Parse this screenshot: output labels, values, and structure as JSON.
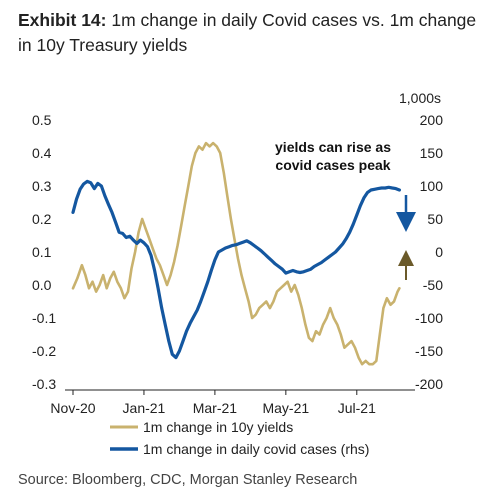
{
  "title": {
    "exhibit": "Exhibit 14:",
    "text": "1m change in daily Covid cases vs. 1m change in 10y Treasury yields"
  },
  "source": "Source: Bloomberg, CDC, Morgan Stanley Research",
  "chart_data": {
    "type": "line",
    "y2_unit": "1,000s",
    "annotation": "yields can rise as covid cases peak",
    "ylim": [
      -0.3,
      0.5
    ],
    "y_ticks": [
      0.5,
      0.4,
      0.3,
      0.2,
      0.1,
      0.0,
      -0.1,
      -0.2,
      -0.3
    ],
    "y_tick_labels": [
      "0.5",
      "0.4",
      "0.3",
      "0.2",
      "0.1",
      "0.0",
      "-0.1",
      "-0.2",
      "-0.3"
    ],
    "y2lim": [
      -200,
      200
    ],
    "y2_ticks": [
      200,
      150,
      100,
      50,
      0,
      -50,
      -100,
      -150,
      -200
    ],
    "y2_tick_labels": [
      "200",
      "150",
      "100",
      "50",
      "0",
      "-50",
      "-100",
      "-150",
      "-200"
    ],
    "x_ticks": [
      {
        "label": "Nov-20",
        "month": 0
      },
      {
        "label": "Jan-21",
        "month": 2
      },
      {
        "label": "Mar-21",
        "month": 4
      },
      {
        "label": "May-21",
        "month": 6
      },
      {
        "label": "Jul-21",
        "month": 8
      }
    ],
    "x_range_months": [
      0,
      9.5
    ],
    "legend_position": "bottom",
    "series": [
      {
        "name": "1m change in 10y yields",
        "axis": "left",
        "color": "#C9B26E",
        "points": [
          [
            0.0,
            -0.01
          ],
          [
            0.12,
            0.02
          ],
          [
            0.25,
            0.06
          ],
          [
            0.35,
            0.03
          ],
          [
            0.45,
            -0.01
          ],
          [
            0.55,
            0.01
          ],
          [
            0.65,
            -0.02
          ],
          [
            0.75,
            0.0
          ],
          [
            0.85,
            0.03
          ],
          [
            0.95,
            -0.01
          ],
          [
            1.05,
            0.02
          ],
          [
            1.15,
            0.04
          ],
          [
            1.25,
            0.01
          ],
          [
            1.35,
            -0.01
          ],
          [
            1.45,
            -0.04
          ],
          [
            1.55,
            -0.02
          ],
          [
            1.65,
            0.05
          ],
          [
            1.75,
            0.1
          ],
          [
            1.85,
            0.16
          ],
          [
            1.95,
            0.2
          ],
          [
            2.05,
            0.17
          ],
          [
            2.15,
            0.14
          ],
          [
            2.25,
            0.11
          ],
          [
            2.35,
            0.08
          ],
          [
            2.45,
            0.06
          ],
          [
            2.55,
            0.03
          ],
          [
            2.65,
            0.0
          ],
          [
            2.75,
            0.03
          ],
          [
            2.85,
            0.07
          ],
          [
            2.95,
            0.12
          ],
          [
            3.05,
            0.18
          ],
          [
            3.15,
            0.24
          ],
          [
            3.25,
            0.3
          ],
          [
            3.35,
            0.36
          ],
          [
            3.45,
            0.4
          ],
          [
            3.55,
            0.42
          ],
          [
            3.65,
            0.41
          ],
          [
            3.75,
            0.43
          ],
          [
            3.85,
            0.42
          ],
          [
            3.95,
            0.43
          ],
          [
            4.05,
            0.42
          ],
          [
            4.15,
            0.4
          ],
          [
            4.25,
            0.34
          ],
          [
            4.35,
            0.27
          ],
          [
            4.45,
            0.2
          ],
          [
            4.55,
            0.14
          ],
          [
            4.65,
            0.08
          ],
          [
            4.75,
            0.03
          ],
          [
            4.85,
            -0.01
          ],
          [
            4.95,
            -0.05
          ],
          [
            5.05,
            -0.1
          ],
          [
            5.15,
            -0.09
          ],
          [
            5.25,
            -0.07
          ],
          [
            5.35,
            -0.06
          ],
          [
            5.45,
            -0.05
          ],
          [
            5.55,
            -0.07
          ],
          [
            5.65,
            -0.05
          ],
          [
            5.75,
            -0.02
          ],
          [
            5.85,
            -0.01
          ],
          [
            5.95,
            0.0
          ],
          [
            6.05,
            0.01
          ],
          [
            6.15,
            -0.02
          ],
          [
            6.25,
            0.0
          ],
          [
            6.35,
            -0.03
          ],
          [
            6.45,
            -0.07
          ],
          [
            6.55,
            -0.12
          ],
          [
            6.65,
            -0.16
          ],
          [
            6.75,
            -0.17
          ],
          [
            6.85,
            -0.14
          ],
          [
            6.95,
            -0.15
          ],
          [
            7.05,
            -0.12
          ],
          [
            7.15,
            -0.1
          ],
          [
            7.25,
            -0.07
          ],
          [
            7.35,
            -0.1
          ],
          [
            7.45,
            -0.12
          ],
          [
            7.55,
            -0.15
          ],
          [
            7.65,
            -0.19
          ],
          [
            7.75,
            -0.18
          ],
          [
            7.85,
            -0.17
          ],
          [
            7.95,
            -0.19
          ],
          [
            8.05,
            -0.22
          ],
          [
            8.15,
            -0.24
          ],
          [
            8.25,
            -0.23
          ],
          [
            8.35,
            -0.24
          ],
          [
            8.45,
            -0.24
          ],
          [
            8.55,
            -0.23
          ],
          [
            8.65,
            -0.15
          ],
          [
            8.75,
            -0.07
          ],
          [
            8.85,
            -0.04
          ],
          [
            8.95,
            -0.06
          ],
          [
            9.05,
            -0.05
          ],
          [
            9.15,
            -0.02
          ],
          [
            9.2,
            -0.01
          ]
        ]
      },
      {
        "name": "1m change in daily covid cases (rhs)",
        "axis": "right",
        "color": "#1457A0",
        "points": [
          [
            0.0,
            60
          ],
          [
            0.1,
            80
          ],
          [
            0.2,
            95
          ],
          [
            0.3,
            103
          ],
          [
            0.4,
            107
          ],
          [
            0.5,
            105
          ],
          [
            0.6,
            96
          ],
          [
            0.7,
            104
          ],
          [
            0.8,
            100
          ],
          [
            0.9,
            85
          ],
          [
            1.0,
            72
          ],
          [
            1.1,
            60
          ],
          [
            1.2,
            45
          ],
          [
            1.3,
            30
          ],
          [
            1.4,
            28
          ],
          [
            1.5,
            22
          ],
          [
            1.6,
            24
          ],
          [
            1.7,
            18
          ],
          [
            1.8,
            13
          ],
          [
            1.9,
            18
          ],
          [
            2.0,
            14
          ],
          [
            2.1,
            8
          ],
          [
            2.2,
            -5
          ],
          [
            2.3,
            -28
          ],
          [
            2.4,
            -55
          ],
          [
            2.5,
            -85
          ],
          [
            2.6,
            -110
          ],
          [
            2.7,
            -135
          ],
          [
            2.8,
            -155
          ],
          [
            2.9,
            -160
          ],
          [
            3.0,
            -150
          ],
          [
            3.1,
            -135
          ],
          [
            3.2,
            -120
          ],
          [
            3.3,
            -108
          ],
          [
            3.4,
            -98
          ],
          [
            3.5,
            -88
          ],
          [
            3.6,
            -75
          ],
          [
            3.7,
            -60
          ],
          [
            3.8,
            -45
          ],
          [
            3.9,
            -28
          ],
          [
            4.0,
            -12
          ],
          [
            4.1,
            0
          ],
          [
            4.2,
            3
          ],
          [
            4.3,
            6
          ],
          [
            4.4,
            8
          ],
          [
            4.5,
            10
          ],
          [
            4.6,
            11
          ],
          [
            4.7,
            13
          ],
          [
            4.8,
            15
          ],
          [
            4.9,
            17
          ],
          [
            5.0,
            14
          ],
          [
            5.1,
            10
          ],
          [
            5.2,
            6
          ],
          [
            5.3,
            2
          ],
          [
            5.4,
            -3
          ],
          [
            5.5,
            -8
          ],
          [
            5.6,
            -13
          ],
          [
            5.7,
            -18
          ],
          [
            5.8,
            -22
          ],
          [
            5.9,
            -26
          ],
          [
            6.0,
            -32
          ],
          [
            6.1,
            -30
          ],
          [
            6.2,
            -28
          ],
          [
            6.3,
            -30
          ],
          [
            6.4,
            -31
          ],
          [
            6.5,
            -30
          ],
          [
            6.6,
            -28
          ],
          [
            6.7,
            -26
          ],
          [
            6.8,
            -22
          ],
          [
            6.9,
            -19
          ],
          [
            7.0,
            -16
          ],
          [
            7.1,
            -12
          ],
          [
            7.2,
            -8
          ],
          [
            7.3,
            -4
          ],
          [
            7.4,
            0
          ],
          [
            7.5,
            6
          ],
          [
            7.6,
            12
          ],
          [
            7.7,
            20
          ],
          [
            7.8,
            30
          ],
          [
            7.9,
            42
          ],
          [
            8.0,
            56
          ],
          [
            8.1,
            70
          ],
          [
            8.2,
            82
          ],
          [
            8.3,
            90
          ],
          [
            8.4,
            94
          ],
          [
            8.5,
            95
          ],
          [
            8.6,
            96
          ],
          [
            8.7,
            97
          ],
          [
            8.8,
            97
          ],
          [
            8.9,
            98
          ],
          [
            9.0,
            97
          ],
          [
            9.1,
            96
          ],
          [
            9.2,
            94
          ]
        ]
      }
    ]
  }
}
